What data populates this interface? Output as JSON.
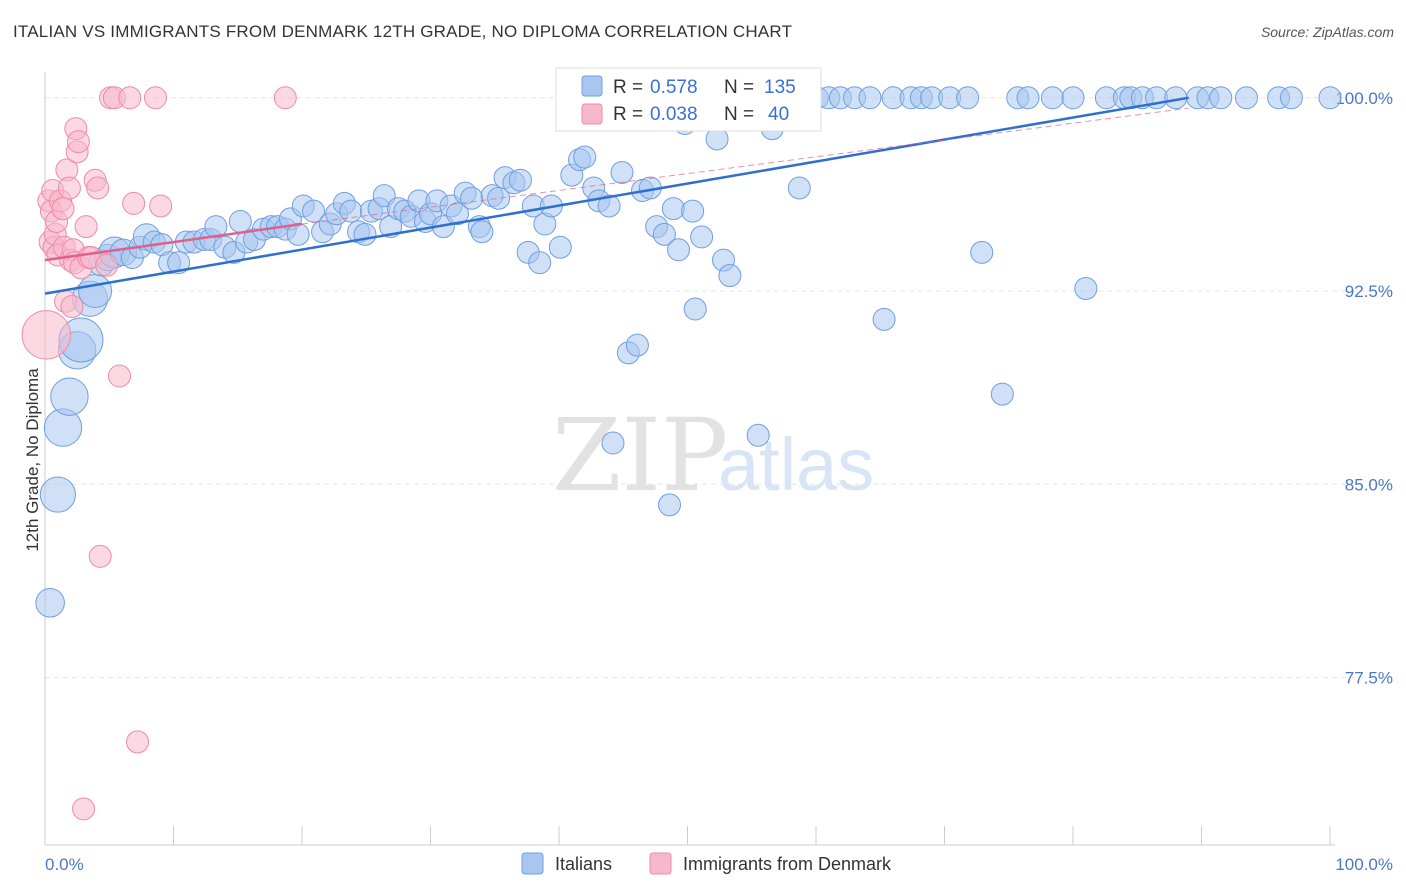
{
  "title": "ITALIAN VS IMMIGRANTS FROM DENMARK 12TH GRADE, NO DIPLOMA CORRELATION CHART",
  "source": "Source: ZipAtlas.com",
  "watermark": {
    "zip": "ZIP",
    "atlas": "atlas"
  },
  "colors": {
    "blue_fill": "#a8c6f0",
    "blue_stroke": "#6f9fe0",
    "blue_line": "#2f6fd0",
    "pink_fill": "#f7b8cb",
    "pink_stroke": "#ee8aa8",
    "pink_line": "#e0608a",
    "axis_text": "#4a78c8",
    "grid": "#e6e6e6"
  },
  "legend": {
    "rows": [
      {
        "r_label": "R = ",
        "r_value": "0.578",
        "n_label": "N = ",
        "n_value": "135",
        "series": "Italians"
      },
      {
        "r_label": "R = ",
        "r_value": "0.038",
        "n_label": "N = ",
        "n_value": "40",
        "series": "Immigrants from Denmark"
      }
    ]
  },
  "chart_data": {
    "type": "scatter",
    "title": "ITALIAN VS IMMIGRANTS FROM DENMARK 12TH GRADE, NO DIPLOMA CORRELATION CHART",
    "xlabel": "",
    "ylabel": "12th Grade, No Diploma",
    "xlim": [
      0,
      100
    ],
    "ylim": [
      71.0,
      101.0
    ],
    "x_tick_labels": [
      "0.0%",
      "100.0%"
    ],
    "y_ticks": [
      {
        "value": 100.0,
        "label": "100.0%"
      },
      {
        "value": 92.5,
        "label": "92.5%"
      },
      {
        "value": 85.0,
        "label": "85.0%"
      },
      {
        "value": 77.5,
        "label": "77.5%"
      }
    ],
    "grid": true,
    "legend_position": "bottom",
    "series": [
      {
        "name": "Italians",
        "color": "#a8c6f0",
        "trend": {
          "x": [
            0,
            89.0
          ],
          "y": [
            92.4,
            100.0
          ]
        },
        "points": [
          [
            0.4,
            80.4,
            1.3
          ],
          [
            1.0,
            84.6,
            1.6
          ],
          [
            1.4,
            87.2,
            1.7
          ],
          [
            1.9,
            88.4,
            1.7
          ],
          [
            2.5,
            90.2,
            1.7
          ],
          [
            2.8,
            90.6,
            2.0
          ],
          [
            3.5,
            92.2,
            1.6
          ],
          [
            3.9,
            92.5,
            1.5
          ],
          [
            4.4,
            93.6,
            1.2
          ],
          [
            4.9,
            93.8,
            1.2
          ],
          [
            5.4,
            94.0,
            1.4
          ],
          [
            6.1,
            94.0,
            1.2
          ],
          [
            6.8,
            93.8,
            1.0
          ],
          [
            7.4,
            94.2,
            1.0
          ],
          [
            7.9,
            94.6,
            1.2
          ],
          [
            8.5,
            94.4,
            1.0
          ],
          [
            9.1,
            94.3,
            1.0
          ],
          [
            9.7,
            93.6,
            1.0
          ],
          [
            10.4,
            93.6,
            1.0
          ],
          [
            11.0,
            94.4,
            1.0
          ],
          [
            11.6,
            94.4,
            1.0
          ],
          [
            12.4,
            94.5,
            1.0
          ],
          [
            12.9,
            94.5,
            1.0
          ],
          [
            13.3,
            95.0,
            1.0
          ],
          [
            14.0,
            94.2,
            1.0
          ],
          [
            14.7,
            94.0,
            1.0
          ],
          [
            15.2,
            95.2,
            1.0
          ],
          [
            15.7,
            94.4,
            1.0
          ],
          [
            16.3,
            94.5,
            1.0
          ],
          [
            17.0,
            94.9,
            1.0
          ],
          [
            17.6,
            95.0,
            1.0
          ],
          [
            18.1,
            95.0,
            1.0
          ],
          [
            18.7,
            94.9,
            1.0
          ],
          [
            19.1,
            95.3,
            1.0
          ],
          [
            19.7,
            94.7,
            1.0
          ],
          [
            20.1,
            95.8,
            1.0
          ],
          [
            20.9,
            95.6,
            1.0
          ],
          [
            21.6,
            94.8,
            1.0
          ],
          [
            22.2,
            95.1,
            1.0
          ],
          [
            22.7,
            95.5,
            1.0
          ],
          [
            23.3,
            95.9,
            1.0
          ],
          [
            23.8,
            95.6,
            1.0
          ],
          [
            24.4,
            94.8,
            1.0
          ],
          [
            24.9,
            94.7,
            1.0
          ],
          [
            25.4,
            95.6,
            1.0
          ],
          [
            26.0,
            95.7,
            1.0
          ],
          [
            26.4,
            96.2,
            1.0
          ],
          [
            26.9,
            95.0,
            1.0
          ],
          [
            27.5,
            95.7,
            1.0
          ],
          [
            28.0,
            95.6,
            1.0
          ],
          [
            28.5,
            95.4,
            1.0
          ],
          [
            29.1,
            96.0,
            1.0
          ],
          [
            29.6,
            95.2,
            1.0
          ],
          [
            30.0,
            95.5,
            1.0
          ],
          [
            30.5,
            96.0,
            1.0
          ],
          [
            31.0,
            95.0,
            1.0
          ],
          [
            31.6,
            95.8,
            1.0
          ],
          [
            32.1,
            95.5,
            1.0
          ],
          [
            32.7,
            96.3,
            1.0
          ],
          [
            33.2,
            96.1,
            1.0
          ],
          [
            33.8,
            95.0,
            1.0
          ],
          [
            34.0,
            94.8,
            1.0
          ],
          [
            34.8,
            96.2,
            1.0
          ],
          [
            35.3,
            96.1,
            1.0
          ],
          [
            35.8,
            96.9,
            1.0
          ],
          [
            36.5,
            96.7,
            1.0
          ],
          [
            37.0,
            96.8,
            1.0
          ],
          [
            37.6,
            94.0,
            1.0
          ],
          [
            38.0,
            95.8,
            1.0
          ],
          [
            38.5,
            93.6,
            1.0
          ],
          [
            38.9,
            95.1,
            1.0
          ],
          [
            39.4,
            95.8,
            1.0
          ],
          [
            40.1,
            94.2,
            1.0
          ],
          [
            41.0,
            97.0,
            1.0
          ],
          [
            41.6,
            97.6,
            1.0
          ],
          [
            42.0,
            97.7,
            1.0
          ],
          [
            42.7,
            96.5,
            1.0
          ],
          [
            43.1,
            96.0,
            1.0
          ],
          [
            43.9,
            95.8,
            1.0
          ],
          [
            44.2,
            86.6,
            1.0
          ],
          [
            44.9,
            97.1,
            1.0
          ],
          [
            45.4,
            90.1,
            1.0
          ],
          [
            46.1,
            90.4,
            1.0
          ],
          [
            46.5,
            96.4,
            1.0
          ],
          [
            47.1,
            96.5,
            1.0
          ],
          [
            47.6,
            95.0,
            1.0
          ],
          [
            48.2,
            94.7,
            1.0
          ],
          [
            48.6,
            84.2,
            1.0
          ],
          [
            48.9,
            95.7,
            1.0
          ],
          [
            49.3,
            94.1,
            1.0
          ],
          [
            49.8,
            99.0,
            1.0
          ],
          [
            50.4,
            95.6,
            1.0
          ],
          [
            50.6,
            91.8,
            1.0
          ],
          [
            51.1,
            94.6,
            1.0
          ],
          [
            51.7,
            100.0,
            1.0
          ],
          [
            52.3,
            98.4,
            1.0
          ],
          [
            52.8,
            93.7,
            1.0
          ],
          [
            53.3,
            93.1,
            1.0
          ],
          [
            53.9,
            100.0,
            1.0
          ],
          [
            54.3,
            100.0,
            1.0
          ],
          [
            54.8,
            100.0,
            1.0
          ],
          [
            55.5,
            86.9,
            1.0
          ],
          [
            56.1,
            100.0,
            1.0
          ],
          [
            56.6,
            98.8,
            1.0
          ],
          [
            57.1,
            100.0,
            1.0
          ],
          [
            57.6,
            100.0,
            1.0
          ],
          [
            58.1,
            100.0,
            1.0
          ],
          [
            58.7,
            96.5,
            1.0
          ],
          [
            59.3,
            100.0,
            1.0
          ],
          [
            60.1,
            100.0,
            1.0
          ],
          [
            61.0,
            100.0,
            1.0
          ],
          [
            61.9,
            100.0,
            1.0
          ],
          [
            63.0,
            100.0,
            1.0
          ],
          [
            64.2,
            100.0,
            1.0
          ],
          [
            65.3,
            91.4,
            1.0
          ],
          [
            66.0,
            100.0,
            1.0
          ],
          [
            67.4,
            100.0,
            1.0
          ],
          [
            68.2,
            100.0,
            1.0
          ],
          [
            69.0,
            100.0,
            1.0
          ],
          [
            70.4,
            100.0,
            1.0
          ],
          [
            71.8,
            100.0,
            1.0
          ],
          [
            72.9,
            94.0,
            1.0
          ],
          [
            74.5,
            88.5,
            1.0
          ],
          [
            75.7,
            100.0,
            1.0
          ],
          [
            76.5,
            100.0,
            1.0
          ],
          [
            78.4,
            100.0,
            1.0
          ],
          [
            80.0,
            100.0,
            1.0
          ],
          [
            81.0,
            92.6,
            1.0
          ],
          [
            82.6,
            100.0,
            1.0
          ],
          [
            84.0,
            100.0,
            1.0
          ],
          [
            84.5,
            100.0,
            1.0
          ],
          [
            85.4,
            100.0,
            1.0
          ],
          [
            86.5,
            100.0,
            1.0
          ],
          [
            88.0,
            100.0,
            1.0
          ],
          [
            89.7,
            100.0,
            1.0
          ],
          [
            90.5,
            100.0,
            1.0
          ],
          [
            91.5,
            100.0,
            1.0
          ],
          [
            93.5,
            100.0,
            1.0
          ],
          [
            96.0,
            100.0,
            1.0
          ],
          [
            97.0,
            100.0,
            1.0
          ],
          [
            100.0,
            100.0,
            1.0
          ]
        ]
      },
      {
        "name": "Immigrants from Denmark",
        "color": "#f7b8cb",
        "trend": {
          "x": [
            0,
            20.0
          ],
          "y": [
            93.7,
            95.1
          ]
        },
        "points": [
          [
            0.1,
            90.8,
            2.2
          ],
          [
            0.3,
            96.0,
            1.0
          ],
          [
            0.4,
            94.4,
            1.0
          ],
          [
            0.5,
            95.6,
            1.0
          ],
          [
            0.6,
            96.4,
            1.0
          ],
          [
            0.7,
            94.2,
            1.0
          ],
          [
            0.8,
            94.7,
            1.0
          ],
          [
            0.9,
            95.2,
            1.0
          ],
          [
            1.0,
            93.9,
            1.0
          ],
          [
            1.2,
            96.0,
            1.0
          ],
          [
            1.4,
            95.7,
            1.0
          ],
          [
            1.5,
            94.2,
            1.0
          ],
          [
            1.6,
            92.1,
            1.0
          ],
          [
            1.7,
            97.2,
            1.0
          ],
          [
            1.9,
            96.5,
            1.0
          ],
          [
            2.0,
            93.7,
            1.0
          ],
          [
            2.1,
            91.9,
            1.0
          ],
          [
            2.2,
            94.1,
            1.0
          ],
          [
            2.3,
            93.6,
            1.0
          ],
          [
            2.4,
            98.8,
            1.0
          ],
          [
            2.5,
            97.9,
            1.0
          ],
          [
            2.6,
            98.3,
            1.0
          ],
          [
            2.8,
            93.4,
            1.0
          ],
          [
            3.0,
            72.4,
            1.0
          ],
          [
            3.2,
            95.0,
            1.0
          ],
          [
            3.4,
            93.8,
            1.0
          ],
          [
            3.6,
            93.8,
            1.0
          ],
          [
            3.9,
            96.8,
            1.0
          ],
          [
            4.1,
            96.5,
            1.0
          ],
          [
            4.3,
            82.2,
            1.0
          ],
          [
            4.8,
            93.5,
            1.0
          ],
          [
            5.1,
            100.0,
            1.0
          ],
          [
            5.4,
            100.0,
            1.0
          ],
          [
            5.8,
            89.2,
            1.0
          ],
          [
            6.6,
            100.0,
            1.0
          ],
          [
            6.9,
            95.9,
            1.0
          ],
          [
            7.2,
            75.0,
            1.0
          ],
          [
            8.6,
            100.0,
            1.0
          ],
          [
            9.0,
            95.8,
            1.0
          ],
          [
            18.7,
            100.0,
            1.0
          ]
        ]
      }
    ]
  }
}
